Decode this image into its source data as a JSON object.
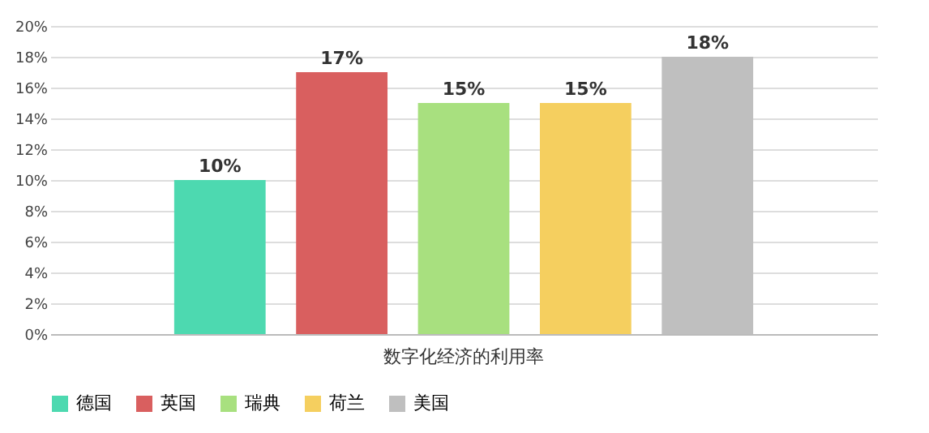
{
  "chart_data": {
    "type": "bar",
    "categories": [
      "数字化经济的利用率"
    ],
    "series": [
      {
        "name": "德国",
        "color": "#4dd9b0",
        "values": [
          10
        ],
        "value_labels": [
          "10%"
        ]
      },
      {
        "name": "英国",
        "color": "#d95f5f",
        "values": [
          17
        ],
        "value_labels": [
          "17%"
        ]
      },
      {
        "name": "瑞典",
        "color": "#a8e07f",
        "values": [
          15
        ],
        "value_labels": [
          "15%"
        ]
      },
      {
        "name": "荷兰",
        "color": "#f5cf5f",
        "values": [
          15
        ],
        "value_labels": [
          "15%"
        ]
      },
      {
        "name": "美国",
        "color": "#bfbfbf",
        "values": [
          18
        ],
        "value_labels": [
          "18%"
        ]
      }
    ],
    "ylim": [
      0,
      20
    ],
    "yticks": [
      {
        "value": 0,
        "label": "0%"
      },
      {
        "value": 2,
        "label": "2%"
      },
      {
        "value": 4,
        "label": "4%"
      },
      {
        "value": 6,
        "label": "6%"
      },
      {
        "value": 8,
        "label": "8%"
      },
      {
        "value": 10,
        "label": "10%"
      },
      {
        "value": 12,
        "label": "12%"
      },
      {
        "value": 14,
        "label": "14%"
      },
      {
        "value": 16,
        "label": "16%"
      },
      {
        "value": 18,
        "label": "18%"
      },
      {
        "value": 20,
        "label": "20%"
      }
    ],
    "grid": "y",
    "legend": "bottom"
  }
}
